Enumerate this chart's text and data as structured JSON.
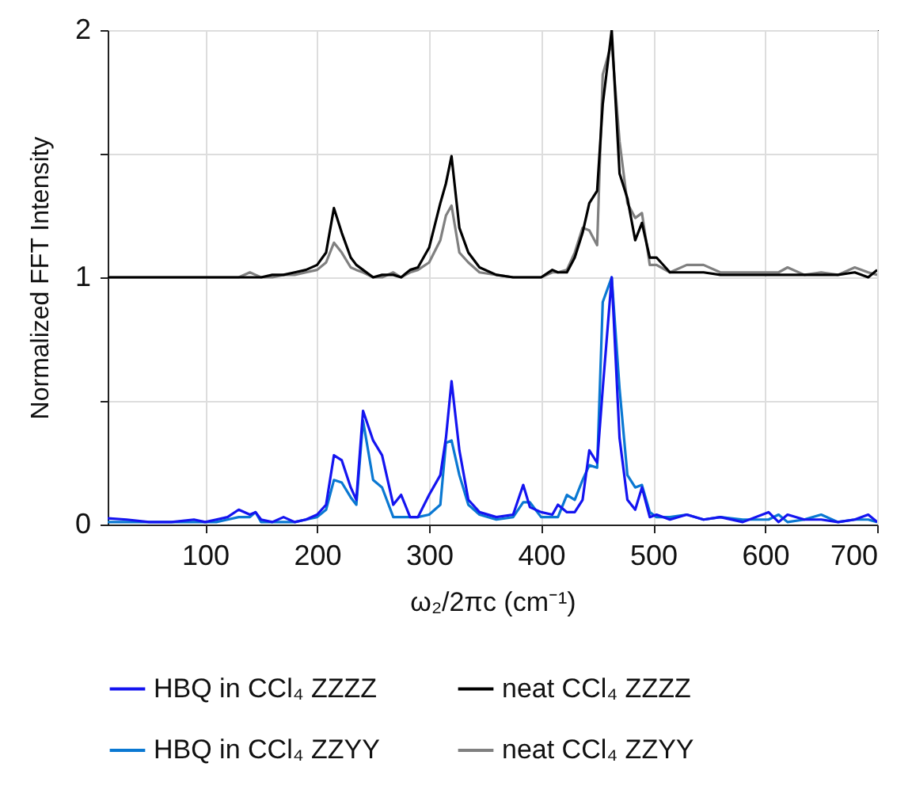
{
  "chart_data": {
    "type": "line",
    "xlabel": "ω₂/2πc (cm⁻¹)",
    "ylabel": "Normalized FFT Intensity",
    "x": [
      13,
      30,
      50,
      70,
      90,
      100,
      110,
      120,
      130,
      140,
      145,
      150,
      160,
      170,
      180,
      190,
      200,
      208,
      215,
      222,
      230,
      235,
      241,
      250,
      258,
      268,
      275,
      283,
      290,
      300,
      310,
      315,
      320,
      327,
      335,
      345,
      360,
      375,
      384,
      390,
      400,
      410,
      415,
      423,
      430,
      437,
      443,
      450,
      455,
      463,
      470,
      477,
      484,
      490,
      497,
      503,
      515,
      530,
      545,
      560,
      580,
      603,
      612,
      620,
      635,
      650,
      665,
      680,
      692,
      700
    ],
    "series": [
      {
        "name": "HBQ in CCl₄ ZZZZ",
        "color": "#1414f0",
        "values": [
          0.025,
          0.02,
          0.01,
          0.01,
          0.02,
          0.01,
          0.02,
          0.03,
          0.06,
          0.04,
          0.05,
          0.02,
          0.01,
          0.03,
          0.01,
          0.02,
          0.04,
          0.08,
          0.28,
          0.26,
          0.15,
          0.1,
          0.46,
          0.34,
          0.28,
          0.08,
          0.12,
          0.03,
          0.03,
          0.12,
          0.2,
          0.35,
          0.58,
          0.3,
          0.1,
          0.05,
          0.03,
          0.04,
          0.16,
          0.07,
          0.05,
          0.04,
          0.08,
          0.05,
          0.05,
          0.1,
          0.3,
          0.25,
          0.55,
          1.0,
          0.35,
          0.1,
          0.06,
          0.15,
          0.03,
          0.04,
          0.02,
          0.04,
          0.02,
          0.03,
          0.01,
          0.05,
          0.01,
          0.04,
          0.02,
          0.02,
          0.01,
          0.02,
          0.04,
          0.01
        ]
      },
      {
        "name": "neat CCl₄ ZZZZ",
        "color": "#000000",
        "values": [
          1.0,
          1.0,
          1.0,
          1.0,
          1.0,
          1.0,
          1.0,
          1.0,
          1.0,
          1.0,
          1.0,
          1.0,
          1.01,
          1.01,
          1.02,
          1.03,
          1.05,
          1.1,
          1.28,
          1.18,
          1.08,
          1.05,
          1.03,
          1.0,
          1.01,
          1.01,
          1.0,
          1.03,
          1.04,
          1.12,
          1.3,
          1.38,
          1.49,
          1.2,
          1.1,
          1.04,
          1.01,
          1.0,
          1.0,
          1.0,
          1.0,
          1.03,
          1.02,
          1.02,
          1.08,
          1.18,
          1.3,
          1.35,
          1.7,
          2.0,
          1.42,
          1.32,
          1.15,
          1.22,
          1.08,
          1.08,
          1.02,
          1.02,
          1.02,
          1.01,
          1.01,
          1.01,
          1.01,
          1.01,
          1.01,
          1.01,
          1.01,
          1.02,
          1.0,
          1.03
        ]
      },
      {
        "name": "HBQ in CCl₄ ZZYY",
        "color": "#0a78d2",
        "values": [
          0.01,
          0.01,
          0.01,
          0.01,
          0.01,
          0.01,
          0.01,
          0.02,
          0.03,
          0.03,
          0.05,
          0.01,
          0.01,
          0.01,
          0.01,
          0.02,
          0.03,
          0.06,
          0.18,
          0.17,
          0.11,
          0.08,
          0.42,
          0.18,
          0.15,
          0.03,
          0.03,
          0.03,
          0.03,
          0.04,
          0.08,
          0.33,
          0.34,
          0.2,
          0.08,
          0.04,
          0.02,
          0.03,
          0.09,
          0.09,
          0.03,
          0.03,
          0.03,
          0.12,
          0.1,
          0.18,
          0.24,
          0.23,
          0.9,
          1.0,
          0.55,
          0.2,
          0.15,
          0.16,
          0.05,
          0.03,
          0.03,
          0.04,
          0.02,
          0.03,
          0.02,
          0.02,
          0.04,
          0.01,
          0.02,
          0.04,
          0.01,
          0.02,
          0.02,
          0.01
        ]
      },
      {
        "name": "neat CCl₄ ZZYY",
        "color": "#808080",
        "values": [
          1.0,
          1.0,
          1.0,
          1.0,
          1.0,
          1.0,
          1.0,
          1.0,
          1.0,
          1.02,
          1.01,
          1.0,
          1.0,
          1.01,
          1.01,
          1.02,
          1.03,
          1.06,
          1.14,
          1.1,
          1.04,
          1.03,
          1.02,
          1.0,
          1.0,
          1.02,
          1.0,
          1.02,
          1.03,
          1.06,
          1.15,
          1.25,
          1.29,
          1.1,
          1.06,
          1.02,
          1.01,
          1.0,
          1.0,
          1.0,
          1.0,
          1.02,
          1.02,
          1.03,
          1.1,
          1.2,
          1.19,
          1.13,
          1.82,
          1.95,
          1.55,
          1.3,
          1.24,
          1.26,
          1.05,
          1.05,
          1.02,
          1.05,
          1.05,
          1.02,
          1.02,
          1.02,
          1.02,
          1.04,
          1.01,
          1.02,
          1.01,
          1.04,
          1.02,
          1.01
        ]
      }
    ],
    "xlim": [
      13,
      700
    ],
    "xticks": [
      100,
      200,
      300,
      400,
      500,
      600,
      700
    ],
    "ylim": [
      0,
      2
    ],
    "yticks": [
      0,
      {
        "value": 0.5,
        "label": null
      },
      1,
      {
        "value": 1.5,
        "label": null
      },
      2
    ],
    "grid": true,
    "legend": "bottom",
    "line_style": "solid",
    "marker": "none"
  }
}
